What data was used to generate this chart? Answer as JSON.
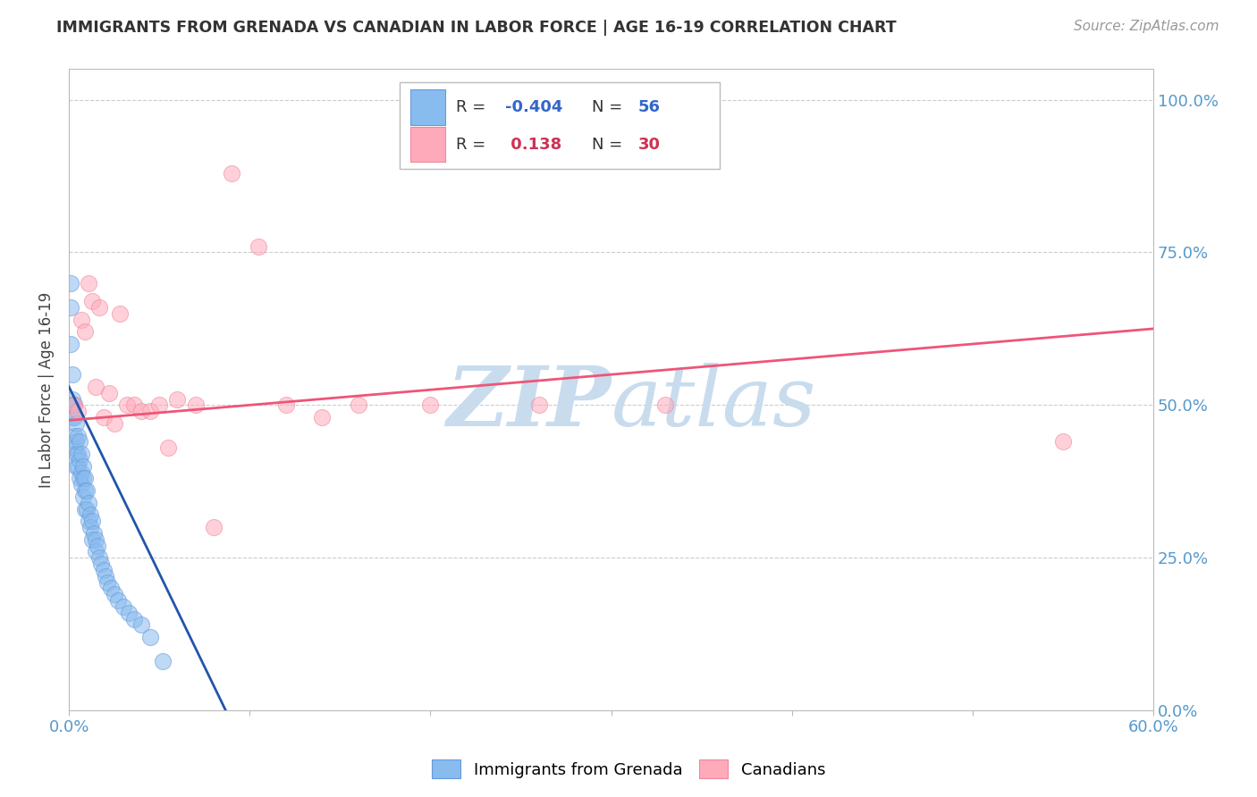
{
  "title": "IMMIGRANTS FROM GRENADA VS CANADIAN IN LABOR FORCE | AGE 16-19 CORRELATION CHART",
  "source": "Source: ZipAtlas.com",
  "ylabel": "In Labor Force | Age 16-19",
  "xlim": [
    0.0,
    0.6
  ],
  "ylim": [
    0.0,
    1.05
  ],
  "xticks": [
    0.0,
    0.1,
    0.2,
    0.3,
    0.4,
    0.5,
    0.6
  ],
  "xticklabels": [
    "0.0%",
    "",
    "",
    "",
    "",
    "",
    "60.0%"
  ],
  "yticks_right": [
    0.0,
    0.25,
    0.5,
    0.75,
    1.0
  ],
  "yticklabels_right": [
    "0.0%",
    "25.0%",
    "50.0%",
    "75.0%",
    "100.0%"
  ],
  "blue_R": "-0.404",
  "blue_N": "56",
  "pink_R": "0.138",
  "pink_N": "30",
  "blue_scatter_x": [
    0.001,
    0.001,
    0.001,
    0.002,
    0.002,
    0.002,
    0.002,
    0.003,
    0.003,
    0.003,
    0.003,
    0.004,
    0.004,
    0.004,
    0.004,
    0.005,
    0.005,
    0.005,
    0.006,
    0.006,
    0.006,
    0.007,
    0.007,
    0.007,
    0.008,
    0.008,
    0.008,
    0.009,
    0.009,
    0.009,
    0.01,
    0.01,
    0.011,
    0.011,
    0.012,
    0.012,
    0.013,
    0.013,
    0.014,
    0.015,
    0.015,
    0.016,
    0.017,
    0.018,
    0.019,
    0.02,
    0.021,
    0.023,
    0.025,
    0.027,
    0.03,
    0.033,
    0.036,
    0.04,
    0.045,
    0.052
  ],
  "blue_scatter_y": [
    0.7,
    0.66,
    0.6,
    0.55,
    0.51,
    0.5,
    0.48,
    0.5,
    0.48,
    0.45,
    0.43,
    0.47,
    0.44,
    0.42,
    0.4,
    0.45,
    0.42,
    0.4,
    0.44,
    0.41,
    0.38,
    0.42,
    0.39,
    0.37,
    0.4,
    0.38,
    0.35,
    0.38,
    0.36,
    0.33,
    0.36,
    0.33,
    0.34,
    0.31,
    0.32,
    0.3,
    0.31,
    0.28,
    0.29,
    0.28,
    0.26,
    0.27,
    0.25,
    0.24,
    0.23,
    0.22,
    0.21,
    0.2,
    0.19,
    0.18,
    0.17,
    0.16,
    0.15,
    0.14,
    0.12,
    0.08
  ],
  "pink_scatter_x": [
    0.003,
    0.005,
    0.007,
    0.009,
    0.011,
    0.013,
    0.015,
    0.017,
    0.019,
    0.022,
    0.025,
    0.028,
    0.032,
    0.036,
    0.04,
    0.045,
    0.05,
    0.055,
    0.06,
    0.07,
    0.08,
    0.09,
    0.105,
    0.12,
    0.14,
    0.16,
    0.2,
    0.26,
    0.33,
    0.55
  ],
  "pink_scatter_y": [
    0.5,
    0.49,
    0.64,
    0.62,
    0.7,
    0.67,
    0.53,
    0.66,
    0.48,
    0.52,
    0.47,
    0.65,
    0.5,
    0.5,
    0.49,
    0.49,
    0.5,
    0.43,
    0.51,
    0.5,
    0.3,
    0.88,
    0.76,
    0.5,
    0.48,
    0.5,
    0.5,
    0.5,
    0.5,
    0.44
  ],
  "blue_line_x": [
    0.0,
    0.09
  ],
  "blue_line_y": [
    0.53,
    -0.02
  ],
  "pink_line_x": [
    0.0,
    0.6
  ],
  "pink_line_y": [
    0.475,
    0.625
  ],
  "blue_color": "#88BBEE",
  "pink_color": "#FFAABB",
  "blue_scatter_edge": "#6699DD",
  "pink_scatter_edge": "#EE8899",
  "blue_line_color": "#2255AA",
  "pink_line_color": "#EE5577",
  "watermark_color": "#C8DCEE",
  "background_color": "#FFFFFF",
  "grid_color": "#CCCCCC"
}
